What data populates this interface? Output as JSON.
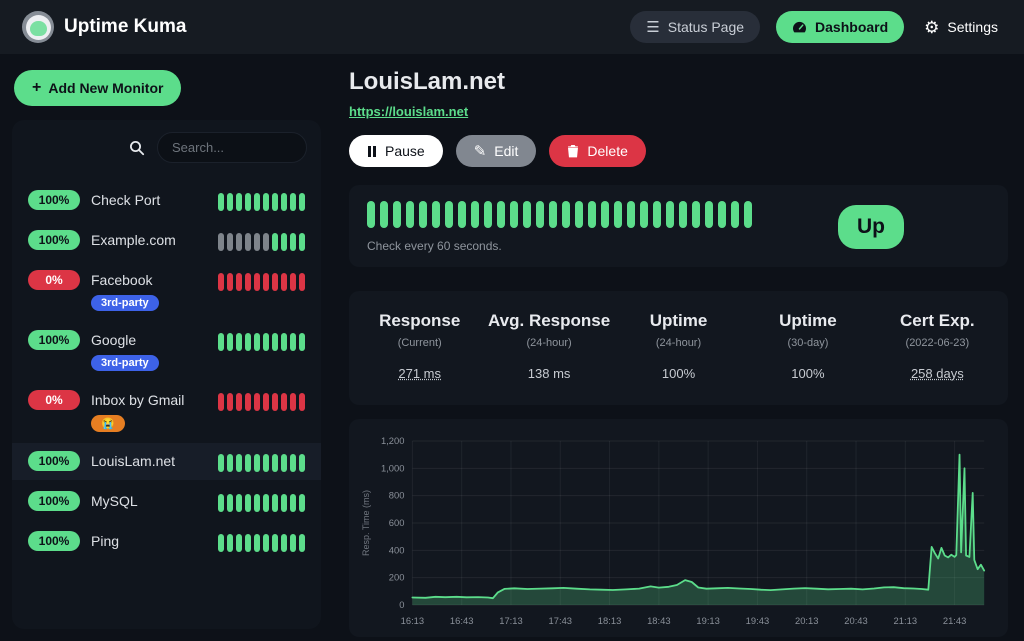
{
  "navbar": {
    "brand": "Uptime Kuma",
    "status_page_label": "Status Page",
    "dashboard_label": "Dashboard",
    "settings_label": "Settings"
  },
  "icons": {
    "hamburger": "☰",
    "gear": "⚙",
    "plus": "+",
    "pencil": "✎"
  },
  "colors": {
    "primary_green": "#5CDD8B",
    "danger_red": "#DC3545",
    "tag_blue": "#3D62E8",
    "tag_orange": "#E67E22",
    "beat_gray": "#7E848B",
    "navbar_bg": "#161B22",
    "page_bg": "#0D1118",
    "panel_bg": "#12171F"
  },
  "sidebar": {
    "add_monitor_label": "Add New Monitor",
    "search_placeholder": "Search...",
    "monitors": [
      {
        "name": "Check Port",
        "uptime": "100%",
        "status": "up",
        "selected": false,
        "tags": [],
        "beats": [
          "up",
          "up",
          "up",
          "up",
          "up",
          "up",
          "up",
          "up",
          "up",
          "up"
        ]
      },
      {
        "name": "Example.com",
        "uptime": "100%",
        "status": "up",
        "selected": false,
        "tags": [],
        "beats": [
          "empty",
          "empty",
          "empty",
          "empty",
          "empty",
          "empty",
          "up",
          "up",
          "up",
          "up"
        ]
      },
      {
        "name": "Facebook",
        "uptime": "0%",
        "status": "down",
        "selected": false,
        "tags": [
          {
            "label": "3rd-party",
            "color": "#3D62E8"
          }
        ],
        "beats": [
          "down",
          "down",
          "down",
          "down",
          "down",
          "down",
          "down",
          "down",
          "down",
          "down"
        ]
      },
      {
        "name": "Google",
        "uptime": "100%",
        "status": "up",
        "selected": false,
        "tags": [
          {
            "label": "3rd-party",
            "color": "#3D62E8"
          }
        ],
        "beats": [
          "up",
          "up",
          "up",
          "up",
          "up",
          "up",
          "up",
          "up",
          "up",
          "up"
        ]
      },
      {
        "name": "Inbox by Gmail",
        "uptime": "0%",
        "status": "down",
        "selected": false,
        "tags": [
          {
            "label": "😭",
            "color": "#E67E22"
          }
        ],
        "beats": [
          "down",
          "down",
          "down",
          "down",
          "down",
          "down",
          "down",
          "down",
          "down",
          "down"
        ]
      },
      {
        "name": "LouisLam.net",
        "uptime": "100%",
        "status": "up",
        "selected": true,
        "tags": [],
        "beats": [
          "up",
          "up",
          "up",
          "up",
          "up",
          "up",
          "up",
          "up",
          "up",
          "up"
        ]
      },
      {
        "name": "MySQL",
        "uptime": "100%",
        "status": "up",
        "selected": false,
        "tags": [],
        "beats": [
          "up",
          "up",
          "up",
          "up",
          "up",
          "up",
          "up",
          "up",
          "up",
          "up"
        ]
      },
      {
        "name": "Ping",
        "uptime": "100%",
        "status": "up",
        "selected": false,
        "tags": [],
        "beats": [
          "up",
          "up",
          "up",
          "up",
          "up",
          "up",
          "up",
          "up",
          "up",
          "up"
        ]
      }
    ]
  },
  "monitor": {
    "title": "LouisLam.net",
    "url": "https://louislam.net",
    "pause_label": "Pause",
    "edit_label": "Edit",
    "delete_label": "Delete",
    "check_interval_text": "Check every 60 seconds.",
    "status_label": "Up",
    "heartbeat_count": 30,
    "heartbeat_status": "up",
    "stats": [
      {
        "title": "Response",
        "subtitle": "(Current)",
        "value": "271 ms",
        "underline": true
      },
      {
        "title": "Avg. Response",
        "subtitle": "(24-hour)",
        "value": "138 ms",
        "underline": false
      },
      {
        "title": "Uptime",
        "subtitle": "(24-hour)",
        "value": "100%",
        "underline": false
      },
      {
        "title": "Uptime",
        "subtitle": "(30-day)",
        "value": "100%",
        "underline": false
      },
      {
        "title": "Cert Exp.",
        "subtitle": "(2022-06-23)",
        "value": "258 days",
        "underline": true
      }
    ]
  },
  "chart_data": {
    "type": "area",
    "title": "",
    "xlabel": "",
    "ylabel": "Resp. Time (ms)",
    "ylim": [
      0,
      1200
    ],
    "x_range_minutes": [
      0,
      348
    ],
    "grid": true,
    "legend": false,
    "y_ticks": [
      [
        0,
        "0"
      ],
      [
        200,
        "200"
      ],
      [
        400,
        "400"
      ],
      [
        600,
        "600"
      ],
      [
        800,
        "800"
      ],
      [
        1000,
        "1,000"
      ],
      [
        1200,
        "1,200"
      ]
    ],
    "x_ticks": [
      [
        0,
        "16:13"
      ],
      [
        30,
        "16:43"
      ],
      [
        60,
        "17:13"
      ],
      [
        90,
        "17:43"
      ],
      [
        120,
        "18:13"
      ],
      [
        150,
        "18:43"
      ],
      [
        180,
        "19:13"
      ],
      [
        210,
        "19:43"
      ],
      [
        240,
        "20:13"
      ],
      [
        270,
        "20:43"
      ],
      [
        300,
        "21:13"
      ],
      [
        330,
        "21:43"
      ]
    ],
    "series": [
      {
        "name": "Resp. Time (ms)",
        "color": "#5CDD8B",
        "fill": "rgba(92,221,139,0.25)",
        "points": [
          [
            0,
            55
          ],
          [
            8,
            53
          ],
          [
            14,
            60
          ],
          [
            20,
            57
          ],
          [
            27,
            60
          ],
          [
            33,
            56
          ],
          [
            40,
            58
          ],
          [
            46,
            55
          ],
          [
            49,
            50
          ],
          [
            52,
            92
          ],
          [
            56,
            118
          ],
          [
            62,
            122
          ],
          [
            70,
            117
          ],
          [
            78,
            120
          ],
          [
            85,
            122
          ],
          [
            92,
            125
          ],
          [
            100,
            119
          ],
          [
            108,
            114
          ],
          [
            115,
            112
          ],
          [
            122,
            110
          ],
          [
            130,
            114
          ],
          [
            138,
            120
          ],
          [
            145,
            136
          ],
          [
            150,
            127
          ],
          [
            156,
            133
          ],
          [
            161,
            146
          ],
          [
            166,
            182
          ],
          [
            170,
            168
          ],
          [
            174,
            128
          ],
          [
            179,
            119
          ],
          [
            185,
            122
          ],
          [
            192,
            125
          ],
          [
            199,
            121
          ],
          [
            206,
            117
          ],
          [
            212,
            112
          ],
          [
            218,
            109
          ],
          [
            225,
            114
          ],
          [
            232,
            120
          ],
          [
            239,
            124
          ],
          [
            246,
            119
          ],
          [
            253,
            115
          ],
          [
            260,
            117
          ],
          [
            267,
            119
          ],
          [
            274,
            114
          ],
          [
            281,
            121
          ],
          [
            287,
            129
          ],
          [
            293,
            130
          ],
          [
            299,
            123
          ],
          [
            305,
            121
          ],
          [
            310,
            117
          ],
          [
            314,
            112
          ],
          [
            316,
            425
          ],
          [
            318,
            378
          ],
          [
            320,
            340
          ],
          [
            322,
            418
          ],
          [
            324,
            362
          ],
          [
            326,
            348
          ],
          [
            328,
            368
          ],
          [
            330,
            352
          ],
          [
            331,
            365
          ],
          [
            333,
            1100
          ],
          [
            334,
            385
          ],
          [
            336,
            1000
          ],
          [
            337,
            362
          ],
          [
            339,
            352
          ],
          [
            341,
            820
          ],
          [
            342,
            330
          ],
          [
            344,
            262
          ],
          [
            346,
            295
          ],
          [
            348,
            252
          ]
        ]
      }
    ]
  }
}
